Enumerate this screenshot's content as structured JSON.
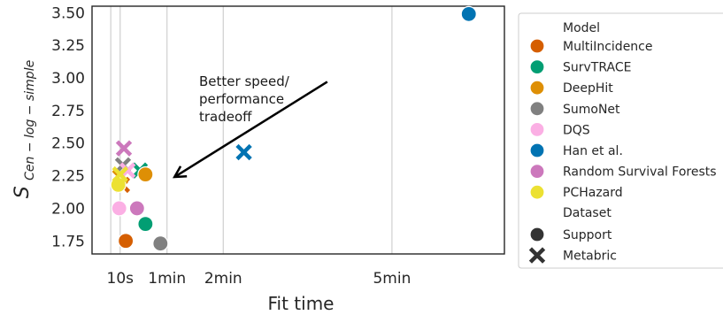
{
  "chart_data": {
    "type": "scatter",
    "xlabel": "Fit time",
    "ylabel_main": "S",
    "ylabel_sub": "Cen − log − simple",
    "ylim": [
      1.65,
      3.55
    ],
    "y_ticks": [
      1.75,
      2.0,
      2.25,
      2.5,
      2.75,
      3.0,
      3.25,
      3.5
    ],
    "y_tick_labels": [
      "1.75",
      "2.00",
      "2.25",
      "2.50",
      "2.75",
      "3.00",
      "3.25",
      "3.50"
    ],
    "xlim_seconds": [
      -20,
      420
    ],
    "x_ticks_seconds": [
      10,
      60,
      120,
      300
    ],
    "x_tick_labels": [
      "10s",
      "1min",
      "2min",
      "5min"
    ],
    "x_grid_seconds": [
      0,
      10,
      60,
      120,
      300
    ],
    "grid": true,
    "annotation": {
      "lines": [
        "Better speed/",
        "performance",
        "tradeoff"
      ],
      "arrow_from": [
        231,
        2.97
      ],
      "arrow_to": [
        68,
        2.24
      ]
    },
    "legend": {
      "placement": "right",
      "hue_title": "Model",
      "style_title": "Dataset",
      "models": [
        {
          "name": "MultiIncidence",
          "color": "#d55e00"
        },
        {
          "name": "SurvTRACE",
          "color": "#029e73"
        },
        {
          "name": "DeepHit",
          "color": "#de8f05"
        },
        {
          "name": "SumoNet",
          "color": "#808080"
        },
        {
          "name": "DQS",
          "color": "#fbafe4"
        },
        {
          "name": "Han et al.",
          "color": "#0173b2"
        },
        {
          "name": "Random Survival Forests",
          "color": "#cc78bc"
        },
        {
          "name": "PCHazard",
          "color": "#ece133"
        }
      ],
      "datasets": [
        {
          "name": "Support",
          "marker": "circle"
        },
        {
          "name": "Metabric",
          "marker": "x"
        }
      ]
    },
    "series": [
      {
        "name": "MultiIncidence",
        "points": [
          {
            "x": 16,
            "y": 1.75,
            "dataset": "Support"
          },
          {
            "x": 12,
            "y": 2.18,
            "dataset": "Metabric"
          }
        ]
      },
      {
        "name": "SurvTRACE",
        "points": [
          {
            "x": 37,
            "y": 1.88,
            "dataset": "Support"
          },
          {
            "x": 31,
            "y": 2.29,
            "dataset": "Metabric"
          }
        ]
      },
      {
        "name": "DeepHit",
        "points": [
          {
            "x": 37,
            "y": 2.26,
            "dataset": "Support"
          },
          {
            "x": 10,
            "y": 2.24,
            "dataset": "Metabric"
          }
        ]
      },
      {
        "name": "SumoNet",
        "points": [
          {
            "x": 53,
            "y": 1.73,
            "dataset": "Support"
          },
          {
            "x": 13,
            "y": 2.33,
            "dataset": "Metabric"
          }
        ]
      },
      {
        "name": "DQS",
        "points": [
          {
            "x": 9,
            "y": 2.0,
            "dataset": "Support"
          },
          {
            "x": 18,
            "y": 2.29,
            "dataset": "Metabric"
          }
        ]
      },
      {
        "name": "Han et al.",
        "points": [
          {
            "x": 382,
            "y": 3.49,
            "dataset": "Support"
          },
          {
            "x": 142,
            "y": 2.43,
            "dataset": "Metabric"
          }
        ]
      },
      {
        "name": "Random Survival Forests",
        "points": [
          {
            "x": 28,
            "y": 2.0,
            "dataset": "Support"
          },
          {
            "x": 14,
            "y": 2.46,
            "dataset": "Metabric"
          }
        ]
      },
      {
        "name": "PCHazard",
        "points": [
          {
            "x": 8,
            "y": 2.18,
            "dataset": "Support"
          },
          {
            "x": 10,
            "y": 2.26,
            "dataset": "Metabric"
          }
        ]
      }
    ]
  }
}
